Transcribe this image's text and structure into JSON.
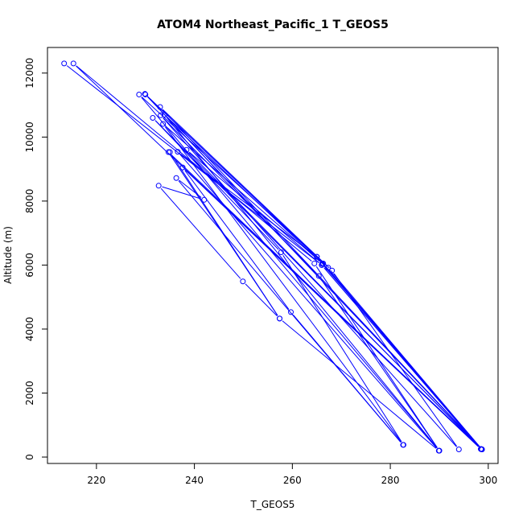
{
  "chart_data": {
    "type": "scatter",
    "title": "ATOM4 Northeast_Pacific_1 T_GEOS5",
    "xlabel": "T_GEOS5",
    "ylabel": "Altitude (m)",
    "xlim": [
      210,
      302
    ],
    "ylim": [
      -200,
      12800
    ],
    "xticks": [
      220,
      240,
      260,
      280,
      300
    ],
    "yticks": [
      0,
      2000,
      4000,
      6000,
      8000,
      10000,
      12000
    ],
    "grid": false,
    "legend": "none",
    "color": "#0000ff",
    "series": [
      {
        "mode": "lines+markers",
        "points": [
          {
            "x": 213.4,
            "y": 12300
          },
          {
            "x": 266.0,
            "y": 6000
          },
          {
            "x": 298.5,
            "y": 250
          },
          {
            "x": 215.3,
            "y": 12300
          },
          {
            "x": 264.5,
            "y": 6050
          },
          {
            "x": 290.0,
            "y": 200
          },
          {
            "x": 228.7,
            "y": 11330
          },
          {
            "x": 265.0,
            "y": 6260
          },
          {
            "x": 298.7,
            "y": 240
          },
          {
            "x": 229.9,
            "y": 11350
          },
          {
            "x": 266.3,
            "y": 6050
          },
          {
            "x": 298.7,
            "y": 240
          },
          {
            "x": 230.0,
            "y": 11330
          },
          {
            "x": 267.3,
            "y": 5920
          },
          {
            "x": 298.7,
            "y": 240
          },
          {
            "x": 233.0,
            "y": 10940
          },
          {
            "x": 268.1,
            "y": 5830
          },
          {
            "x": 294.0,
            "y": 240
          },
          {
            "x": 233.1,
            "y": 10680
          },
          {
            "x": 265.4,
            "y": 5660
          },
          {
            "x": 290.0,
            "y": 200
          },
          {
            "x": 233.9,
            "y": 10700
          },
          {
            "x": 266.1,
            "y": 6040
          },
          {
            "x": 298.7,
            "y": 240
          },
          {
            "x": 231.5,
            "y": 10600
          },
          {
            "x": 257.7,
            "y": 6400
          },
          {
            "x": 282.7,
            "y": 380
          },
          {
            "x": 233.6,
            "y": 10410
          },
          {
            "x": 266.1,
            "y": 6050
          },
          {
            "x": 298.6,
            "y": 250
          },
          {
            "x": 234.7,
            "y": 9530
          },
          {
            "x": 257.4,
            "y": 4330
          },
          {
            "x": 289.9,
            "y": 200
          },
          {
            "x": 236.6,
            "y": 9540
          },
          {
            "x": 265.0,
            "y": 6260
          },
          {
            "x": 298.5,
            "y": 250
          },
          {
            "x": 238.4,
            "y": 9600
          },
          {
            "x": 266.0,
            "y": 6000
          },
          {
            "x": 298.5,
            "y": 250
          },
          {
            "x": 237.6,
            "y": 9050
          },
          {
            "x": 259.7,
            "y": 4530
          },
          {
            "x": 282.6,
            "y": 380
          },
          {
            "x": 236.3,
            "y": 8720
          },
          {
            "x": 242.0,
            "y": 8040
          },
          {
            "x": 232.7,
            "y": 8480
          },
          {
            "x": 249.9,
            "y": 5490
          },
          {
            "x": 257.4,
            "y": 4330
          },
          {
            "x": 235.0,
            "y": 9530
          }
        ]
      }
    ]
  }
}
